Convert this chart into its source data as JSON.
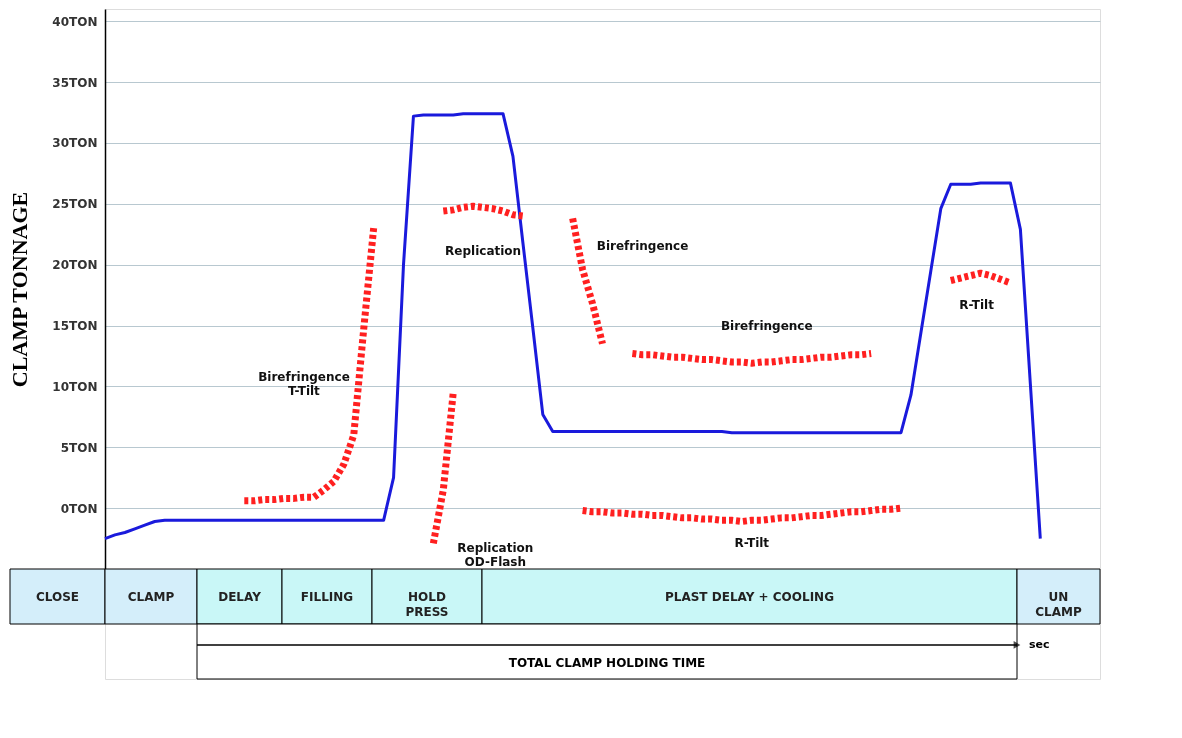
{
  "chart_data": {
    "type": "line",
    "ylabel": "CLAMP TONNAGE",
    "categories": [
      null,
      null,
      null,
      null,
      null,
      null,
      null,
      null,
      null,
      null,
      null,
      null,
      null,
      null,
      null,
      null,
      null,
      null,
      null,
      null,
      null,
      null,
      null,
      null,
      null,
      null,
      null,
      null,
      null,
      null,
      null,
      null,
      null,
      null,
      null,
      null,
      null,
      null,
      null,
      null,
      null,
      null,
      null,
      null,
      null,
      null,
      null,
      null,
      null,
      null,
      null,
      null,
      null,
      null,
      null,
      null,
      null,
      null,
      null,
      null,
      null,
      null,
      null,
      null,
      null,
      null,
      null,
      null,
      null,
      null,
      null,
      null,
      null,
      null,
      null,
      null,
      null,
      null,
      null,
      null,
      null,
      null,
      null,
      null,
      null,
      null,
      null,
      null,
      null,
      null,
      null,
      null,
      null,
      null,
      null,
      null,
      null,
      null,
      null,
      null,
      null
    ],
    "ylim": [
      -5,
      41
    ],
    "yticks": [
      {
        "value": 0,
        "label": "0TON"
      },
      {
        "value": 5,
        "label": "5TON"
      },
      {
        "value": 10,
        "label": "10TON"
      },
      {
        "value": 15,
        "label": "15TON"
      },
      {
        "value": 20,
        "label": "20TON"
      },
      {
        "value": 25,
        "label": "25TON"
      },
      {
        "value": 30,
        "label": "30TON"
      },
      {
        "value": 35,
        "label": "35TON"
      },
      {
        "value": 40,
        "label": "40TON"
      }
    ],
    "tick_labels": "y",
    "grid": "y",
    "marker": "none",
    "series": [
      {
        "color": "#1a1adc",
        "line_style": "solid",
        "values": [
          -2.5,
          -2.2,
          -2.0,
          -1.7,
          -1.4,
          -1.1,
          -1.0,
          -1.0,
          -1.0,
          -1.0,
          -1.0,
          -1.0,
          -1.0,
          -1.0,
          -1.0,
          -1.0,
          -1.0,
          -1.0,
          -1.0,
          -1.0,
          -1.0,
          -1.0,
          -1.0,
          -1.0,
          -1.0,
          -1.0,
          -1.0,
          -1.0,
          -1.0,
          2.5,
          20.0,
          32.2,
          32.3,
          32.3,
          32.3,
          32.3,
          32.4,
          32.4,
          32.4,
          32.4,
          32.4,
          28.9,
          21.8,
          14.8,
          7.7,
          6.3,
          6.3,
          6.3,
          6.3,
          6.3,
          6.3,
          6.3,
          6.3,
          6.3,
          6.3,
          6.3,
          6.3,
          6.3,
          6.3,
          6.3,
          6.3,
          6.3,
          6.3,
          6.2,
          6.2,
          6.2,
          6.2,
          6.2,
          6.2,
          6.2,
          6.2,
          6.2,
          6.2,
          6.2,
          6.2,
          6.2,
          6.2,
          6.2,
          6.2,
          6.2,
          6.2,
          9.3,
          14.4,
          19.5,
          24.6,
          26.6,
          26.6,
          26.6,
          26.7,
          26.7,
          26.7,
          26.7,
          22.9,
          10.2,
          -2.5,
          null,
          null,
          null,
          null,
          null,
          null
        ]
      },
      {
        "name": "Birefringence\nT-Tilt",
        "color": "#ff2020",
        "line_style": "dashed",
        "values": [
          null,
          null,
          null,
          null,
          null,
          null,
          null,
          null,
          null,
          null,
          null,
          null,
          null,
          null,
          0.6,
          0.6,
          0.7,
          0.7,
          0.8,
          0.8,
          0.9,
          0.9,
          1.5,
          2.2,
          3.6,
          6.0,
          14.7,
          23.0,
          null,
          null,
          null,
          null,
          null,
          null,
          null,
          null,
          null,
          null,
          null,
          null,
          null,
          null,
          null,
          null,
          null,
          null,
          null,
          null,
          null,
          null,
          null,
          null,
          null,
          null,
          null,
          null,
          null,
          null,
          null,
          null,
          null,
          null,
          null,
          null,
          null,
          null,
          null,
          null,
          null,
          null,
          null,
          null,
          null,
          null,
          null,
          null,
          null,
          null,
          null,
          null,
          null,
          null,
          null,
          null,
          null,
          null,
          null,
          null,
          null,
          null,
          null,
          null,
          null,
          null,
          null,
          null,
          null,
          null,
          null,
          null,
          null
        ]
      },
      {
        "name": "Replication\nOD-Flash",
        "color": "#ff2020",
        "line_style": "dashed",
        "values": [
          null,
          null,
          null,
          null,
          null,
          null,
          null,
          null,
          null,
          null,
          null,
          null,
          null,
          null,
          null,
          null,
          null,
          null,
          null,
          null,
          null,
          null,
          null,
          null,
          null,
          null,
          null,
          null,
          null,
          null,
          null,
          null,
          null,
          -2.9,
          1.5,
          9.5,
          null,
          null,
          null,
          null,
          null,
          null,
          null,
          null,
          null,
          null,
          null,
          null,
          null,
          null,
          null,
          null,
          null,
          null,
          null,
          null,
          null,
          null,
          null,
          null,
          null,
          null,
          null,
          null,
          null,
          null,
          null,
          null,
          null,
          null,
          null,
          null,
          null,
          null,
          null,
          null,
          null,
          null,
          null,
          null,
          null,
          null,
          null,
          null,
          null,
          null,
          null,
          null,
          null,
          null,
          null,
          null,
          null,
          null,
          null,
          null,
          null,
          null,
          null,
          null,
          null
        ]
      },
      {
        "name": "Replication",
        "color": "#ff2020",
        "line_style": "dashed",
        "values": [
          null,
          null,
          null,
          null,
          null,
          null,
          null,
          null,
          null,
          null,
          null,
          null,
          null,
          null,
          null,
          null,
          null,
          null,
          null,
          null,
          null,
          null,
          null,
          null,
          null,
          null,
          null,
          null,
          null,
          null,
          null,
          null,
          null,
          null,
          24.4,
          24.5,
          24.7,
          24.8,
          24.7,
          24.6,
          24.4,
          24.1,
          24.0,
          null,
          null,
          null,
          null,
          null,
          null,
          null,
          null,
          null,
          null,
          null,
          null,
          null,
          null,
          null,
          null,
          null,
          null,
          null,
          null,
          null,
          null,
          null,
          null,
          null,
          null,
          null,
          null,
          null,
          null,
          null,
          null,
          null,
          null,
          null,
          null,
          null,
          null,
          null,
          null,
          null,
          null,
          null,
          null,
          null,
          null,
          null,
          null,
          null,
          null,
          null,
          null,
          null,
          null,
          null,
          null,
          null,
          null
        ]
      },
      {
        "name": "Birefringence",
        "color": "#ff2020",
        "line_style": "dashed",
        "values": [
          null,
          null,
          null,
          null,
          null,
          null,
          null,
          null,
          null,
          null,
          null,
          null,
          null,
          null,
          null,
          null,
          null,
          null,
          null,
          null,
          null,
          null,
          null,
          null,
          null,
          null,
          null,
          null,
          null,
          null,
          null,
          null,
          null,
          null,
          null,
          null,
          null,
          null,
          null,
          null,
          null,
          null,
          null,
          null,
          null,
          null,
          null,
          23.8,
          19.6,
          16.8,
          13.5,
          null,
          null,
          null,
          null,
          null,
          null,
          null,
          null,
          null,
          null,
          null,
          null,
          null,
          null,
          null,
          null,
          null,
          null,
          null,
          null,
          null,
          null,
          null,
          null,
          null,
          null,
          null,
          null,
          null,
          null,
          null,
          null,
          null,
          null,
          null,
          null,
          null,
          null,
          null,
          null,
          null,
          null,
          null,
          null,
          null,
          null,
          null,
          null,
          null,
          null
        ]
      },
      {
        "name": "Birefringence",
        "color": "#ff2020",
        "line_style": "dashed",
        "values": [
          null,
          null,
          null,
          null,
          null,
          null,
          null,
          null,
          null,
          null,
          null,
          null,
          null,
          null,
          null,
          null,
          null,
          null,
          null,
          null,
          null,
          null,
          null,
          null,
          null,
          null,
          null,
          null,
          null,
          null,
          null,
          null,
          null,
          null,
          null,
          null,
          null,
          null,
          null,
          null,
          null,
          null,
          null,
          null,
          null,
          null,
          null,
          null,
          null,
          null,
          null,
          null,
          null,
          12.7,
          12.6,
          12.6,
          12.5,
          12.4,
          12.4,
          12.3,
          12.2,
          12.2,
          12.1,
          12.0,
          12.0,
          11.9,
          12.0,
          12.0,
          12.1,
          12.2,
          12.2,
          12.3,
          12.4,
          12.4,
          12.5,
          12.6,
          12.6,
          12.7,
          null,
          null,
          null,
          null,
          null,
          null,
          null,
          null,
          null,
          null,
          null,
          null,
          null,
          null,
          null,
          null,
          null,
          null,
          null,
          null,
          null,
          null,
          null
        ]
      },
      {
        "name": "R-Tilt",
        "color": "#ff2020",
        "line_style": "dashed",
        "values": [
          null,
          null,
          null,
          null,
          null,
          null,
          null,
          null,
          null,
          null,
          null,
          null,
          null,
          null,
          null,
          null,
          null,
          null,
          null,
          null,
          null,
          null,
          null,
          null,
          null,
          null,
          null,
          null,
          null,
          null,
          null,
          null,
          null,
          null,
          null,
          null,
          null,
          null,
          null,
          null,
          null,
          null,
          null,
          null,
          null,
          null,
          null,
          null,
          -0.2,
          -0.3,
          -0.3,
          -0.4,
          -0.4,
          -0.5,
          -0.5,
          -0.6,
          -0.6,
          -0.7,
          -0.8,
          -0.8,
          -0.9,
          -0.9,
          -1.0,
          -1.0,
          -1.1,
          -1.0,
          -1.0,
          -0.9,
          -0.8,
          -0.8,
          -0.7,
          -0.6,
          -0.6,
          -0.5,
          -0.4,
          -0.3,
          -0.3,
          -0.2,
          -0.1,
          -0.1,
          0.0,
          null,
          null,
          null,
          null,
          null,
          null,
          null,
          null,
          null,
          null,
          null,
          null,
          null,
          null,
          null,
          null,
          null,
          null,
          null,
          null
        ]
      },
      {
        "name": "R-Tilt",
        "color": "#ff2020",
        "line_style": "dashed",
        "values": [
          null,
          null,
          null,
          null,
          null,
          null,
          null,
          null,
          null,
          null,
          null,
          null,
          null,
          null,
          null,
          null,
          null,
          null,
          null,
          null,
          null,
          null,
          null,
          null,
          null,
          null,
          null,
          null,
          null,
          null,
          null,
          null,
          null,
          null,
          null,
          null,
          null,
          null,
          null,
          null,
          null,
          null,
          null,
          null,
          null,
          null,
          null,
          null,
          null,
          null,
          null,
          null,
          null,
          null,
          null,
          null,
          null,
          null,
          null,
          null,
          null,
          null,
          null,
          null,
          null,
          null,
          null,
          null,
          null,
          null,
          null,
          null,
          null,
          null,
          null,
          null,
          null,
          null,
          null,
          null,
          null,
          null,
          null,
          null,
          null,
          18.7,
          18.9,
          19.1,
          19.3,
          19.1,
          18.8,
          18.5,
          null,
          null,
          null,
          null,
          null,
          null,
          null,
          null,
          null
        ]
      }
    ],
    "annotations": [
      "CLOSE",
      "CLAMP",
      "DELAY",
      "FILLING",
      "HOLD\nPRESS",
      "PLAST DELAY + COOLING",
      "UN\nCLAMP",
      "TOTAL CLAMP HOLDING TIME",
      "sec"
    ]
  }
}
